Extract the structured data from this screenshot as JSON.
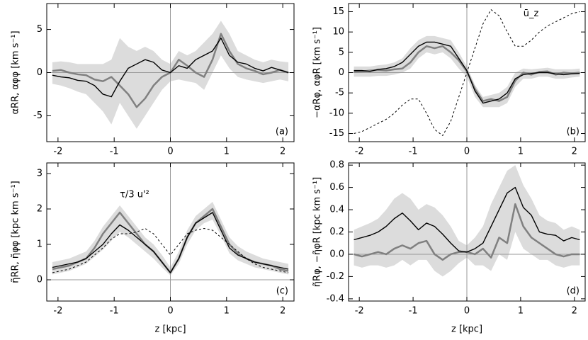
{
  "chart_data": [
    {
      "type": "line",
      "panel_label": "(a)",
      "ylabel": "αRR, αφφ  [km s⁻¹]",
      "x": [
        -2.1,
        -1.95,
        -1.8,
        -1.65,
        -1.5,
        -1.35,
        -1.2,
        -1.05,
        -0.9,
        -0.75,
        -0.6,
        -0.45,
        -0.3,
        -0.15,
        0,
        0.15,
        0.3,
        0.45,
        0.6,
        0.75,
        0.9,
        1.05,
        1.2,
        1.35,
        1.5,
        1.65,
        1.8,
        1.95,
        2.1
      ],
      "xlim": [
        -2.2,
        2.2
      ],
      "xticks": [
        -2,
        -1,
        0,
        1,
        2
      ],
      "ylim": [
        -8,
        8
      ],
      "yticks": [
        -5,
        0,
        5
      ],
      "series": [
        {
          "type": "band",
          "color": "#dcdcdc",
          "lower": [
            -1.3,
            -1.5,
            -1.8,
            -2.2,
            -2.5,
            -3.5,
            -4.5,
            -6.0,
            -3.5,
            -5.0,
            -6.5,
            -5.0,
            -3.5,
            -2.0,
            -1.0,
            -0.8,
            -1.0,
            -1.2,
            -2.0,
            0,
            2.0,
            0.5,
            -0.5,
            -0.8,
            -1.0,
            -1.2,
            -1.0,
            -0.8,
            -1.0
          ],
          "upper": [
            1.2,
            1.3,
            1.2,
            1.0,
            1.0,
            1.0,
            1.0,
            1.5,
            4.0,
            3.0,
            2.5,
            3.0,
            2.5,
            1.5,
            1.0,
            2.5,
            2.0,
            2.5,
            3.5,
            4.5,
            6.0,
            4.5,
            2.5,
            2.0,
            1.5,
            1.2,
            1.5,
            1.3,
            1.2
          ]
        },
        {
          "color": "#808080",
          "width": 2.5,
          "values": [
            0.2,
            0.3,
            0.0,
            -0.2,
            -0.3,
            -0.8,
            -1.0,
            -0.5,
            -1.5,
            -2.5,
            -4.0,
            -3.0,
            -1.5,
            -0.5,
            0,
            1.5,
            0.8,
            0,
            -0.5,
            1.5,
            4.5,
            2.5,
            1.0,
            0.5,
            0.2,
            -0.2,
            0.0,
            0.3,
            0.0
          ]
        },
        {
          "color": "#000000",
          "width": 1.4,
          "values": [
            -0.3,
            -0.5,
            -0.6,
            -0.9,
            -1.0,
            -1.5,
            -2.5,
            -2.8,
            -1.0,
            0.5,
            1.0,
            1.5,
            1.2,
            0.3,
            0,
            0.8,
            0.5,
            1.5,
            2.0,
            2.5,
            4.0,
            2.0,
            1.2,
            1.0,
            0.5,
            0.2,
            0.6,
            0.3,
            0.0
          ]
        }
      ]
    },
    {
      "type": "line",
      "panel_label": "(b)",
      "ylabel": "−αRφ, αφR  [km s⁻¹]",
      "annotation": "ū_z",
      "x": [
        -2.1,
        -1.95,
        -1.8,
        -1.65,
        -1.5,
        -1.35,
        -1.2,
        -1.05,
        -0.9,
        -0.75,
        -0.6,
        -0.45,
        -0.3,
        -0.15,
        0,
        0.15,
        0.3,
        0.45,
        0.6,
        0.75,
        0.9,
        1.05,
        1.2,
        1.35,
        1.5,
        1.65,
        1.8,
        1.95,
        2.1
      ],
      "xlim": [
        -2.2,
        2.2
      ],
      "xticks": [
        -2,
        -1,
        0,
        1,
        2
      ],
      "ylim": [
        -17,
        17
      ],
      "yticks": [
        -15,
        -10,
        -5,
        0,
        5,
        10,
        15
      ],
      "series": [
        {
          "type": "band",
          "color": "#dcdcdc",
          "lower": [
            -1,
            -1,
            -1,
            -0.8,
            -0.8,
            -0.5,
            0,
            1.0,
            3.5,
            5.0,
            4.5,
            5.0,
            3.5,
            1.0,
            -1.0,
            -6.0,
            -8.5,
            -8.5,
            -8.5,
            -7.5,
            -3.5,
            -1.5,
            -1.5,
            -1,
            -1,
            -1.5,
            -1.5,
            -1.2,
            -1
          ],
          "upper": [
            1.5,
            1.5,
            1.5,
            1.8,
            2.0,
            2.5,
            3.5,
            6.0,
            8.0,
            9.0,
            9.0,
            8.5,
            8.0,
            5.0,
            1.5,
            -3.0,
            -6.0,
            -5.5,
            -5.0,
            -3.5,
            0,
            1.0,
            0.8,
            1.0,
            1.2,
            0.8,
            0.8,
            0.8,
            1.0
          ]
        },
        {
          "color": "#808080",
          "width": 2.5,
          "values": [
            0.2,
            0.3,
            0.5,
            0.6,
            0.5,
            0.8,
            1.0,
            2.5,
            5.0,
            6.5,
            6.0,
            6.5,
            5.0,
            3.0,
            0.3,
            -4.0,
            -7.0,
            -6.5,
            -7.0,
            -6.0,
            -2.0,
            0.0,
            -0.5,
            0.2,
            0.3,
            -0.5,
            0.0,
            -0.2,
            0.0
          ]
        },
        {
          "color": "#000000",
          "width": 1.4,
          "values": [
            0.5,
            0.5,
            0.3,
            0.8,
            1.0,
            1.5,
            2.5,
            4.5,
            6.5,
            7.5,
            7.5,
            7.0,
            6.5,
            3.5,
            0.5,
            -4.5,
            -7.5,
            -7.0,
            -6.5,
            -5.0,
            -1.5,
            -0.5,
            -0.2,
            0,
            0,
            -0.3,
            -0.5,
            -0.3,
            -0.2
          ]
        },
        {
          "color": "#000000",
          "width": 1,
          "dash": "3,3",
          "values": [
            -15,
            -14.5,
            -13.5,
            -12.5,
            -11.5,
            -10,
            -8,
            -6.5,
            -6.5,
            -10,
            -14,
            -15.5,
            -12,
            -6,
            0,
            6,
            12,
            15.5,
            14,
            10,
            6.5,
            6.5,
            8,
            10,
            11.5,
            12.5,
            13.5,
            14.5,
            15
          ]
        }
      ]
    },
    {
      "type": "line",
      "panel_label": "(c)",
      "ylabel": "η̃RR, η̃φφ  [kpc km s⁻¹]",
      "xlabel": "z [kpc]",
      "annotation": "τ/3 u'²",
      "x": [
        -2.1,
        -1.95,
        -1.8,
        -1.65,
        -1.5,
        -1.35,
        -1.2,
        -1.05,
        -0.9,
        -0.75,
        -0.6,
        -0.45,
        -0.3,
        -0.15,
        0,
        0.15,
        0.3,
        0.45,
        0.6,
        0.75,
        0.9,
        1.05,
        1.2,
        1.35,
        1.5,
        1.65,
        1.8,
        1.95,
        2.1
      ],
      "xlim": [
        -2.2,
        2.2
      ],
      "xticks": [
        -2,
        -1,
        0,
        1,
        2
      ],
      "ylim": [
        -0.6,
        3.3
      ],
      "yticks": [
        0,
        1,
        2,
        3
      ],
      "series": [
        {
          "type": "band",
          "color": "#dcdcdc",
          "lower": [
            0.15,
            0.2,
            0.25,
            0.35,
            0.45,
            0.65,
            0.85,
            1.1,
            1.35,
            1.2,
            1.0,
            0.8,
            0.6,
            0.35,
            0.12,
            0.45,
            1.0,
            1.4,
            1.6,
            1.7,
            1.25,
            0.75,
            0.55,
            0.45,
            0.35,
            0.3,
            0.25,
            0.2,
            0.15
          ],
          "upper": [
            0.5,
            0.55,
            0.6,
            0.7,
            0.8,
            1.1,
            1.5,
            1.8,
            2.1,
            1.8,
            1.5,
            1.2,
            1.0,
            0.7,
            0.35,
            0.8,
            1.4,
            1.8,
            2.0,
            2.2,
            1.7,
            1.2,
            0.95,
            0.8,
            0.7,
            0.6,
            0.55,
            0.5,
            0.45
          ]
        },
        {
          "color": "#808080",
          "width": 2.5,
          "values": [
            0.3,
            0.35,
            0.4,
            0.5,
            0.6,
            0.9,
            1.3,
            1.6,
            1.9,
            1.6,
            1.3,
            1.0,
            0.8,
            0.5,
            0.2,
            0.6,
            1.2,
            1.6,
            1.8,
            2.0,
            1.5,
            1.0,
            0.75,
            0.6,
            0.5,
            0.45,
            0.4,
            0.3,
            0.25
          ]
        },
        {
          "color": "#000000",
          "width": 1.4,
          "values": [
            0.35,
            0.4,
            0.45,
            0.5,
            0.6,
            0.8,
            1.0,
            1.3,
            1.55,
            1.4,
            1.2,
            1.0,
            0.8,
            0.5,
            0.2,
            0.6,
            1.2,
            1.6,
            1.75,
            1.9,
            1.4,
            0.9,
            0.7,
            0.6,
            0.5,
            0.45,
            0.4,
            0.35,
            0.3
          ]
        },
        {
          "color": "#000000",
          "width": 1,
          "dash": "3,3",
          "values": [
            0.2,
            0.25,
            0.3,
            0.4,
            0.5,
            0.7,
            0.9,
            1.15,
            1.3,
            1.3,
            1.35,
            1.45,
            1.3,
            1.0,
            0.7,
            1.0,
            1.3,
            1.4,
            1.45,
            1.4,
            1.2,
            1.0,
            0.8,
            0.6,
            0.45,
            0.35,
            0.3,
            0.25,
            0.2
          ]
        }
      ]
    },
    {
      "type": "line",
      "panel_label": "(d)",
      "ylabel": "η̃Rφ, −η̃φR  [kpc km s⁻¹]",
      "xlabel": "z [kpc]",
      "x": [
        -2.1,
        -1.95,
        -1.8,
        -1.65,
        -1.5,
        -1.35,
        -1.2,
        -1.05,
        -0.9,
        -0.75,
        -0.6,
        -0.45,
        -0.3,
        -0.15,
        0,
        0.15,
        0.3,
        0.45,
        0.6,
        0.75,
        0.9,
        1.05,
        1.2,
        1.35,
        1.5,
        1.65,
        1.8,
        1.95,
        2.1
      ],
      "xlim": [
        -2.2,
        2.2
      ],
      "xticks": [
        -2,
        -1,
        0,
        1,
        2
      ],
      "ylim": [
        -0.42,
        0.82
      ],
      "yticks": [
        -0.4,
        -0.2,
        {
          "value": 0,
          "label": "0.0"
        },
        0.2,
        0.4,
        0.6,
        0.8
      ],
      "series": [
        {
          "type": "band",
          "color": "#dcdcdc",
          "lower": [
            -0.1,
            -0.12,
            -0.1,
            -0.1,
            -0.12,
            -0.1,
            -0.05,
            -0.1,
            -0.05,
            -0.05,
            -0.15,
            -0.2,
            -0.15,
            -0.08,
            -0.03,
            -0.1,
            -0.1,
            -0.15,
            0.0,
            -0.05,
            0.2,
            0.05,
            0.0,
            -0.05,
            -0.05,
            -0.1,
            -0.12,
            -0.1,
            -0.1
          ],
          "upper": [
            0.22,
            0.25,
            0.28,
            0.32,
            0.4,
            0.5,
            0.55,
            0.5,
            0.4,
            0.45,
            0.42,
            0.35,
            0.25,
            0.12,
            0.08,
            0.15,
            0.25,
            0.45,
            0.6,
            0.75,
            0.8,
            0.62,
            0.5,
            0.35,
            0.3,
            0.28,
            0.22,
            0.25,
            0.22
          ]
        },
        {
          "color": "#808080",
          "width": 2.5,
          "values": [
            0.0,
            -0.02,
            0.0,
            0.02,
            0.0,
            0.05,
            0.08,
            0.05,
            0.1,
            0.12,
            0.0,
            -0.05,
            0.0,
            0.02,
            0.02,
            0.0,
            0.05,
            -0.03,
            0.15,
            0.1,
            0.45,
            0.25,
            0.15,
            0.1,
            0.05,
            0.0,
            -0.02,
            0.0,
            0.0
          ]
        },
        {
          "color": "#000000",
          "width": 1.4,
          "values": [
            0.13,
            0.15,
            0.17,
            0.2,
            0.25,
            0.32,
            0.37,
            0.3,
            0.22,
            0.28,
            0.25,
            0.18,
            0.1,
            0.03,
            0.02,
            0.05,
            0.1,
            0.25,
            0.4,
            0.55,
            0.6,
            0.42,
            0.35,
            0.2,
            0.18,
            0.17,
            0.12,
            0.15,
            0.13
          ]
        }
      ]
    }
  ]
}
